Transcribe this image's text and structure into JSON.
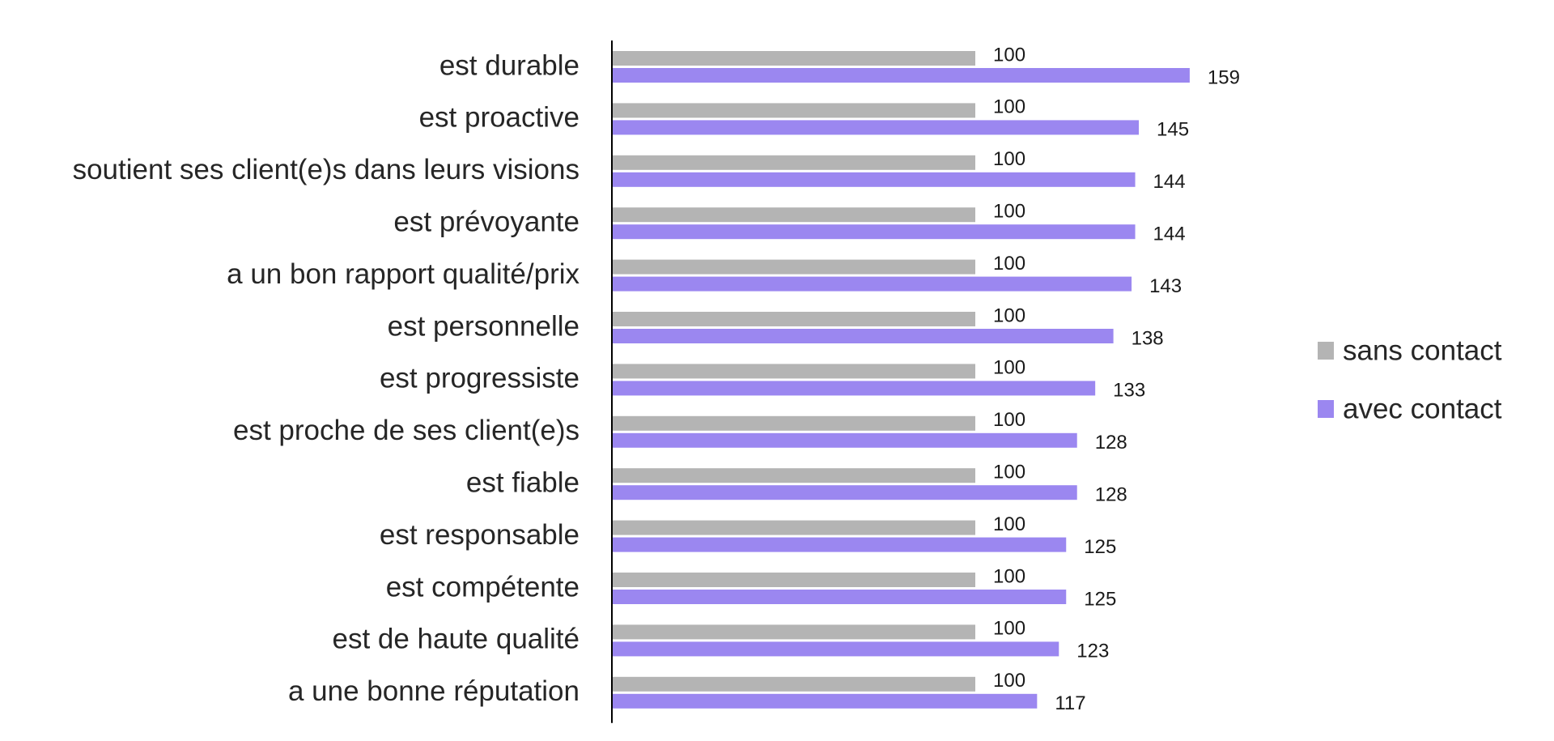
{
  "chart_data": {
    "type": "bar",
    "orientation": "horizontal",
    "categories": [
      "est durable",
      "est proactive",
      "soutient ses client(e)s dans leurs visions",
      "est prévoyante",
      "a un bon rapport qualité/prix",
      "est personnelle",
      "est progressiste",
      "est proche de ses client(e)s",
      "est fiable",
      "est responsable",
      "est compétente",
      "est de haute qualité",
      "a une bonne réputation"
    ],
    "series": [
      {
        "name": "sans contact",
        "color": "#b4b4b4",
        "values": [
          100,
          100,
          100,
          100,
          100,
          100,
          100,
          100,
          100,
          100,
          100,
          100,
          100
        ]
      },
      {
        "name": "avec contact",
        "color": "#9b87f0",
        "values": [
          159,
          145,
          144,
          144,
          143,
          138,
          133,
          128,
          128,
          125,
          125,
          123,
          117
        ]
      }
    ],
    "xlim": [
      0,
      185
    ],
    "data_labels": true,
    "grid": false,
    "legend_position": "right"
  }
}
